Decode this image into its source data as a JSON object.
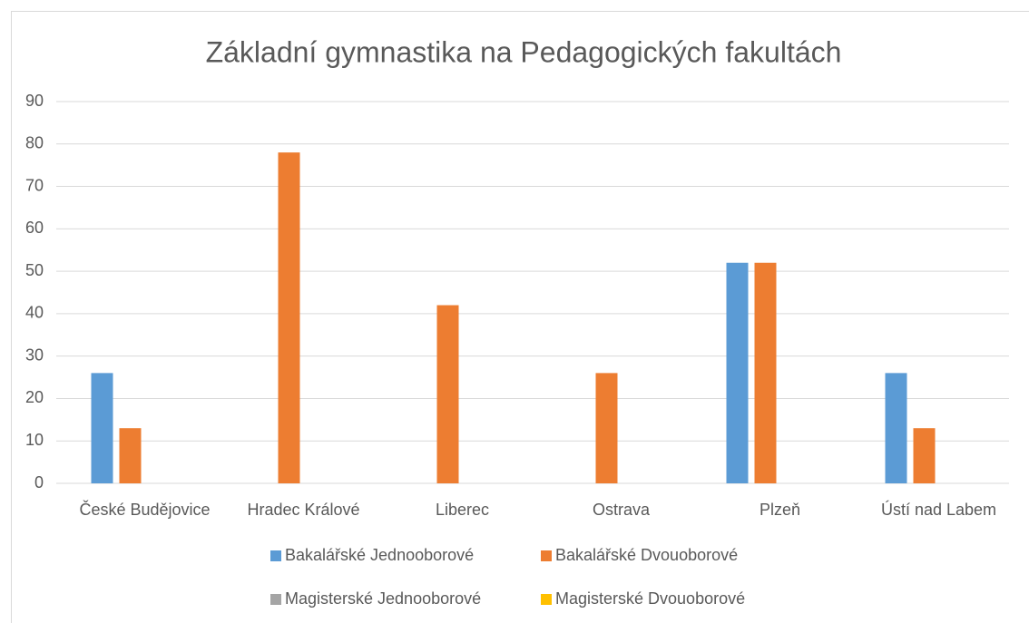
{
  "chart_data": {
    "type": "bar",
    "title": "Základní gymnastika na Pedagogických fakultách",
    "categories": [
      "České Budějovice",
      "Hradec Králové",
      "Liberec",
      "Ostrava",
      "Plzeň",
      "Ústí nad Labem"
    ],
    "series": [
      {
        "name": "Bakalářské Jednooborové",
        "color": "#5b9bd5",
        "values": [
          26,
          0,
          0,
          0,
          52,
          26
        ]
      },
      {
        "name": "Bakalářské Dvouoborové",
        "color": "#ed7d31",
        "values": [
          13,
          78,
          42,
          26,
          52,
          13
        ]
      },
      {
        "name": "Magisterské Jednooborové",
        "color": "#a5a5a5",
        "values": [
          0,
          0,
          0,
          0,
          0,
          0
        ]
      },
      {
        "name": "Magisterské Dvouoborové",
        "color": "#ffc000",
        "values": [
          0,
          0,
          0,
          0,
          0,
          0
        ]
      }
    ],
    "ylim": [
      0,
      90
    ],
    "yticks": [
      0,
      10,
      20,
      30,
      40,
      50,
      60,
      70,
      80,
      90
    ],
    "grid": true,
    "legend": "bottom"
  }
}
